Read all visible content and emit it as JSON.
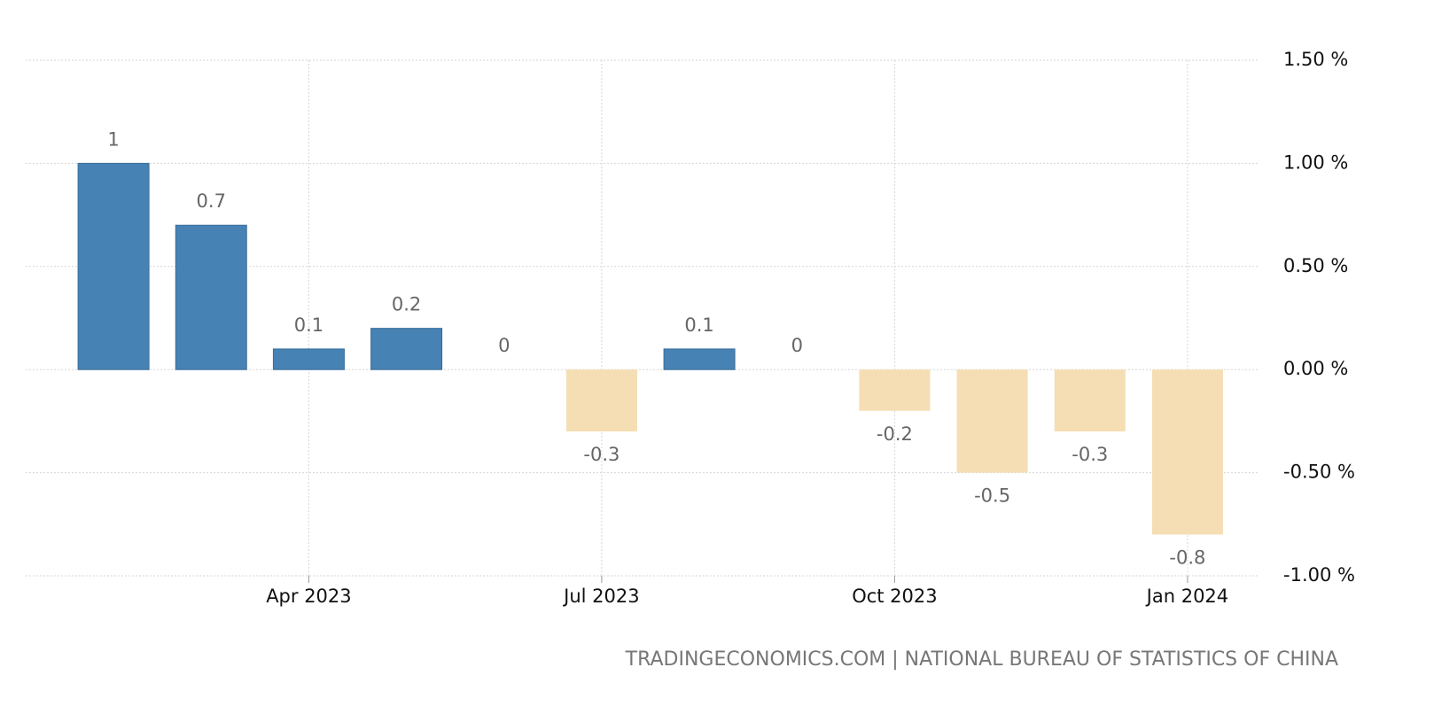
{
  "chart_data": {
    "type": "bar",
    "categories": [
      null,
      null,
      "Apr 2023",
      null,
      null,
      "Jul 2023",
      null,
      null,
      "Oct 2023",
      null,
      null,
      "Jan 2024"
    ],
    "values": [
      1,
      0.7,
      0.1,
      0.2,
      0,
      -0.3,
      0.1,
      0,
      -0.2,
      -0.5,
      -0.3,
      -0.8
    ],
    "colors": {
      "positive": "#4682b4",
      "negative": "#f5deb3"
    },
    "ylim": [
      -1,
      1.5
    ],
    "yticks": [
      {
        "value": -1,
        "label": "-1.00 %"
      },
      {
        "value": -0.5,
        "label": "-0.50 %"
      },
      {
        "value": 0,
        "label": "0.00 %"
      },
      {
        "value": 0.5,
        "label": "0.50 %"
      },
      {
        "value": 1,
        "label": "1.00 %"
      },
      {
        "value": 1.5,
        "label": "1.50 %"
      }
    ],
    "grid": true,
    "source": "TRADINGECONOMICS.COM | NATIONAL BUREAU OF STATISTICS OF CHINA"
  }
}
